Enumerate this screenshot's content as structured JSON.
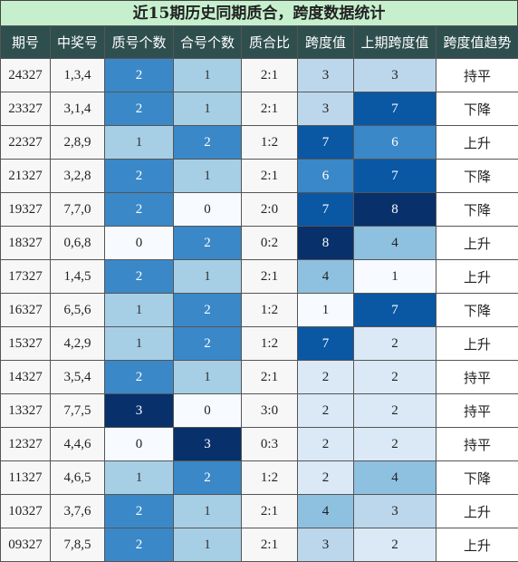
{
  "title": "近15期历史同期质合，跨度数据统计",
  "headers": [
    "期号",
    "中奖号",
    "质号个数",
    "合号个数",
    "质合比",
    "跨度值",
    "上期跨度值",
    "跨度值趋势"
  ],
  "rows": [
    {
      "period": "24327",
      "numbers": "1,3,4",
      "prime": "2",
      "composite": "1",
      "ratio": "2:1",
      "span": "3",
      "prev_span": "3",
      "trend": "持平"
    },
    {
      "period": "23327",
      "numbers": "3,1,4",
      "prime": "2",
      "composite": "1",
      "ratio": "2:1",
      "span": "3",
      "prev_span": "7",
      "trend": "下降"
    },
    {
      "period": "22327",
      "numbers": "2,8,9",
      "prime": "1",
      "composite": "2",
      "ratio": "1:2",
      "span": "7",
      "prev_span": "6",
      "trend": "上升"
    },
    {
      "period": "21327",
      "numbers": "3,2,8",
      "prime": "2",
      "composite": "1",
      "ratio": "2:1",
      "span": "6",
      "prev_span": "7",
      "trend": "下降"
    },
    {
      "period": "19327",
      "numbers": "7,7,0",
      "prime": "2",
      "composite": "0",
      "ratio": "2:0",
      "span": "7",
      "prev_span": "8",
      "trend": "下降"
    },
    {
      "period": "18327",
      "numbers": "0,6,8",
      "prime": "0",
      "composite": "2",
      "ratio": "0:2",
      "span": "8",
      "prev_span": "4",
      "trend": "上升"
    },
    {
      "period": "17327",
      "numbers": "1,4,5",
      "prime": "2",
      "composite": "1",
      "ratio": "2:1",
      "span": "4",
      "prev_span": "1",
      "trend": "上升"
    },
    {
      "period": "16327",
      "numbers": "6,5,6",
      "prime": "1",
      "composite": "2",
      "ratio": "1:2",
      "span": "1",
      "prev_span": "7",
      "trend": "下降"
    },
    {
      "period": "15327",
      "numbers": "4,2,9",
      "prime": "1",
      "composite": "2",
      "ratio": "1:2",
      "span": "7",
      "prev_span": "2",
      "trend": "上升"
    },
    {
      "period": "14327",
      "numbers": "3,5,4",
      "prime": "2",
      "composite": "1",
      "ratio": "2:1",
      "span": "2",
      "prev_span": "2",
      "trend": "持平"
    },
    {
      "period": "13327",
      "numbers": "7,7,5",
      "prime": "3",
      "composite": "0",
      "ratio": "3:0",
      "span": "2",
      "prev_span": "2",
      "trend": "持平"
    },
    {
      "period": "12327",
      "numbers": "4,4,6",
      "prime": "0",
      "composite": "3",
      "ratio": "0:3",
      "span": "2",
      "prev_span": "2",
      "trend": "持平"
    },
    {
      "period": "11327",
      "numbers": "4,6,5",
      "prime": "1",
      "composite": "2",
      "ratio": "1:2",
      "span": "2",
      "prev_span": "4",
      "trend": "下降"
    },
    {
      "period": "10327",
      "numbers": "3,7,6",
      "prime": "2",
      "composite": "1",
      "ratio": "2:1",
      "span": "4",
      "prev_span": "3",
      "trend": "上升"
    },
    {
      "period": "09327",
      "numbers": "7,8,5",
      "prime": "2",
      "composite": "1",
      "ratio": "2:1",
      "span": "3",
      "prev_span": "2",
      "trend": "上升"
    }
  ],
  "colors": {
    "title_bg": "#c6efce",
    "header_bg": "#2f4f4f",
    "count_scale": [
      "#f7fbff",
      "#a6cfe6",
      "#3a88c7",
      "#08306b"
    ],
    "span_scale": [
      "#f7fbff",
      "#dbe9f6",
      "#bcd7ec",
      "#8ec0e0",
      "#3a88c7",
      "#0a57a4",
      "#08306b"
    ]
  }
}
